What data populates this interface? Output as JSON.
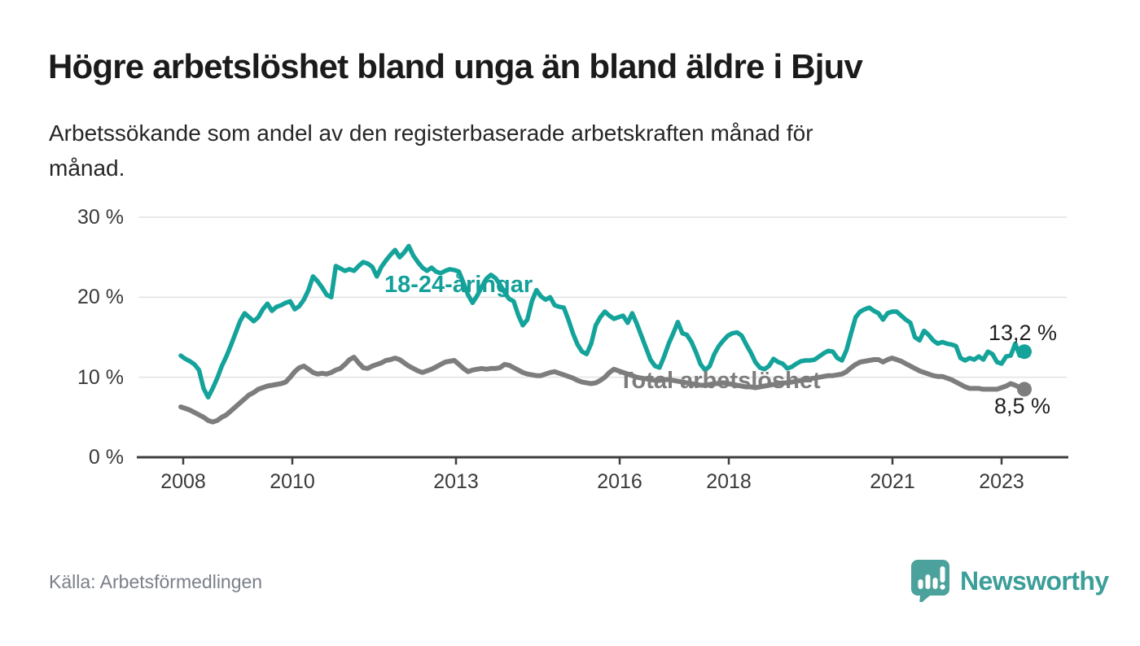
{
  "header": {
    "title": "Högre arbetslöshet bland unga än bland äldre i Bjuv",
    "subtitle_line1": "Arbetssökande som andel av den registerbaserade arbetskraften månad för",
    "subtitle_line2": "månad."
  },
  "footer": {
    "source": "Källa: Arbetsförmedlingen",
    "logo_text": "Newsworthy",
    "logo_icon": "newsworthy-pin-barchart-icon"
  },
  "colors": {
    "young_series": "#14a39a",
    "total_series": "#7d7d7d",
    "young_label": "#14a09a",
    "total_label": "#7d7d7d",
    "gridline": "#e2e2e2",
    "axis": "#3f3f3f",
    "tick_text": "#3a3a3a",
    "logo_teal": "#4ba19b"
  },
  "chart_data": {
    "type": "line",
    "title": "Högre arbetslöshet bland unga än bland äldre i Bjuv",
    "subtitle": "Arbetssökande som andel av den registerbaserade arbetskraften månad för månad.",
    "unit": "%",
    "frequency": "monthly",
    "x_start": "2008-01",
    "x_end": "2023-06",
    "x_tick_years": [
      2008,
      2010,
      2013,
      2016,
      2018,
      2021,
      2023
    ],
    "x_tick_labels": [
      "2008",
      "2010",
      "2013",
      "2016",
      "2018",
      "2021",
      "2023"
    ],
    "y_ticks": [
      30,
      20,
      10,
      0
    ],
    "y_tick_labels": [
      "30 %",
      "20 %",
      "10 %",
      "0 %"
    ],
    "ylim": [
      0,
      31.5
    ],
    "grid": true,
    "legend_position": "inline-labels",
    "series": [
      {
        "name": "18-24-åringar",
        "color": "#14a39a",
        "end_value": 13.2,
        "end_value_label": "13,2 %",
        "values": [
          12.7,
          12.3,
          12.0,
          11.6,
          10.9,
          8.6,
          7.5,
          8.6,
          9.9,
          11.4,
          12.6,
          14.0,
          15.5,
          17.0,
          18.0,
          17.5,
          17.0,
          17.5,
          18.5,
          19.2,
          18.3,
          18.8,
          19.0,
          19.3,
          19.5,
          18.5,
          18.9,
          19.7,
          20.9,
          22.6,
          22.0,
          21.2,
          20.3,
          20.0,
          23.9,
          23.6,
          23.3,
          23.5,
          23.3,
          23.9,
          24.4,
          24.2,
          23.8,
          22.6,
          23.8,
          24.6,
          25.3,
          25.9,
          25.0,
          25.6,
          26.4,
          25.2,
          24.4,
          23.7,
          23.3,
          23.7,
          23.2,
          23.0,
          23.3,
          23.5,
          23.4,
          23.2,
          21.8,
          20.3,
          19.3,
          20.2,
          21.3,
          22.3,
          22.8,
          22.4,
          21.6,
          20.6,
          19.8,
          19.5,
          17.8,
          16.5,
          17.2,
          19.5,
          20.9,
          20.1,
          19.7,
          20.0,
          19.0,
          18.8,
          18.7,
          17.2,
          15.5,
          14.1,
          13.2,
          12.9,
          14.2,
          16.5,
          17.5,
          18.2,
          17.7,
          17.3,
          17.5,
          17.7,
          16.8,
          18.0,
          16.7,
          15.2,
          13.7,
          12.2,
          11.4,
          11.2,
          12.6,
          14.2,
          15.5,
          16.9,
          15.5,
          15.3,
          14.4,
          13.1,
          11.6,
          10.9,
          11.4,
          12.9,
          13.9,
          14.6,
          15.2,
          15.5,
          15.6,
          15.2,
          14.1,
          13.1,
          11.9,
          11.2,
          11.0,
          11.4,
          12.3,
          11.9,
          11.7,
          11.1,
          11.3,
          11.7,
          12.0,
          12.1,
          12.1,
          12.2,
          12.6,
          13.0,
          13.3,
          13.2,
          12.4,
          12.1,
          13.4,
          15.5,
          17.5,
          18.2,
          18.5,
          18.7,
          18.3,
          18.0,
          17.2,
          18.0,
          18.2,
          18.2,
          17.7,
          17.2,
          16.8,
          15.0,
          14.6,
          15.8,
          15.3,
          14.6,
          14.2,
          14.4,
          14.2,
          14.1,
          13.9,
          12.4,
          12.1,
          12.4,
          12.2,
          12.6,
          12.2,
          13.2,
          12.9,
          11.9,
          11.7,
          12.6,
          12.7,
          14.2,
          12.7,
          13.2
        ]
      },
      {
        "name": "Total arbetslöshet",
        "color": "#7d7d7d",
        "end_value": 8.5,
        "end_value_label": "8,5 %",
        "values": [
          6.3,
          6.1,
          5.9,
          5.6,
          5.3,
          5.0,
          4.6,
          4.4,
          4.6,
          5.0,
          5.3,
          5.8,
          6.3,
          6.8,
          7.3,
          7.8,
          8.1,
          8.5,
          8.7,
          8.9,
          9.0,
          9.1,
          9.2,
          9.4,
          10.0,
          10.7,
          11.2,
          11.4,
          11.0,
          10.6,
          10.4,
          10.5,
          10.4,
          10.6,
          10.9,
          11.1,
          11.6,
          12.2,
          12.5,
          11.8,
          11.2,
          11.1,
          11.4,
          11.6,
          11.8,
          12.1,
          12.2,
          12.4,
          12.2,
          11.8,
          11.4,
          11.1,
          10.8,
          10.6,
          10.8,
          11.0,
          11.3,
          11.6,
          11.9,
          12.0,
          12.1,
          11.6,
          11.1,
          10.7,
          10.9,
          11.0,
          11.1,
          11.0,
          11.1,
          11.1,
          11.2,
          11.6,
          11.5,
          11.2,
          10.9,
          10.6,
          10.4,
          10.3,
          10.2,
          10.2,
          10.4,
          10.6,
          10.7,
          10.5,
          10.3,
          10.1,
          9.9,
          9.6,
          9.4,
          9.3,
          9.2,
          9.3,
          9.6,
          10.0,
          10.6,
          11.0,
          10.8,
          10.6,
          10.4,
          10.2,
          10.0,
          9.9,
          9.8,
          9.7,
          9.6,
          9.6,
          9.7,
          9.7,
          9.6,
          9.5,
          9.4,
          9.3,
          9.2,
          9.1,
          9.0,
          9.0,
          9.1,
          9.2,
          9.2,
          9.3,
          9.2,
          9.1,
          9.0,
          8.9,
          8.8,
          8.8,
          8.7,
          8.8,
          8.9,
          9.0,
          9.1,
          9.2,
          9.3,
          9.3,
          9.4,
          9.5,
          9.6,
          9.7,
          9.8,
          9.9,
          10.0,
          10.1,
          10.2,
          10.2,
          10.3,
          10.4,
          10.7,
          11.2,
          11.6,
          11.9,
          12.0,
          12.1,
          12.2,
          12.2,
          11.9,
          12.2,
          12.4,
          12.2,
          12.0,
          11.7,
          11.4,
          11.1,
          10.8,
          10.6,
          10.4,
          10.2,
          10.1,
          10.1,
          9.9,
          9.7,
          9.4,
          9.1,
          8.8,
          8.6,
          8.6,
          8.6,
          8.5,
          8.5,
          8.5,
          8.5,
          8.7,
          8.9,
          9.2,
          9.0,
          8.7,
          8.5
        ]
      }
    ],
    "source": "Källa: Arbetsförmedlingen"
  }
}
